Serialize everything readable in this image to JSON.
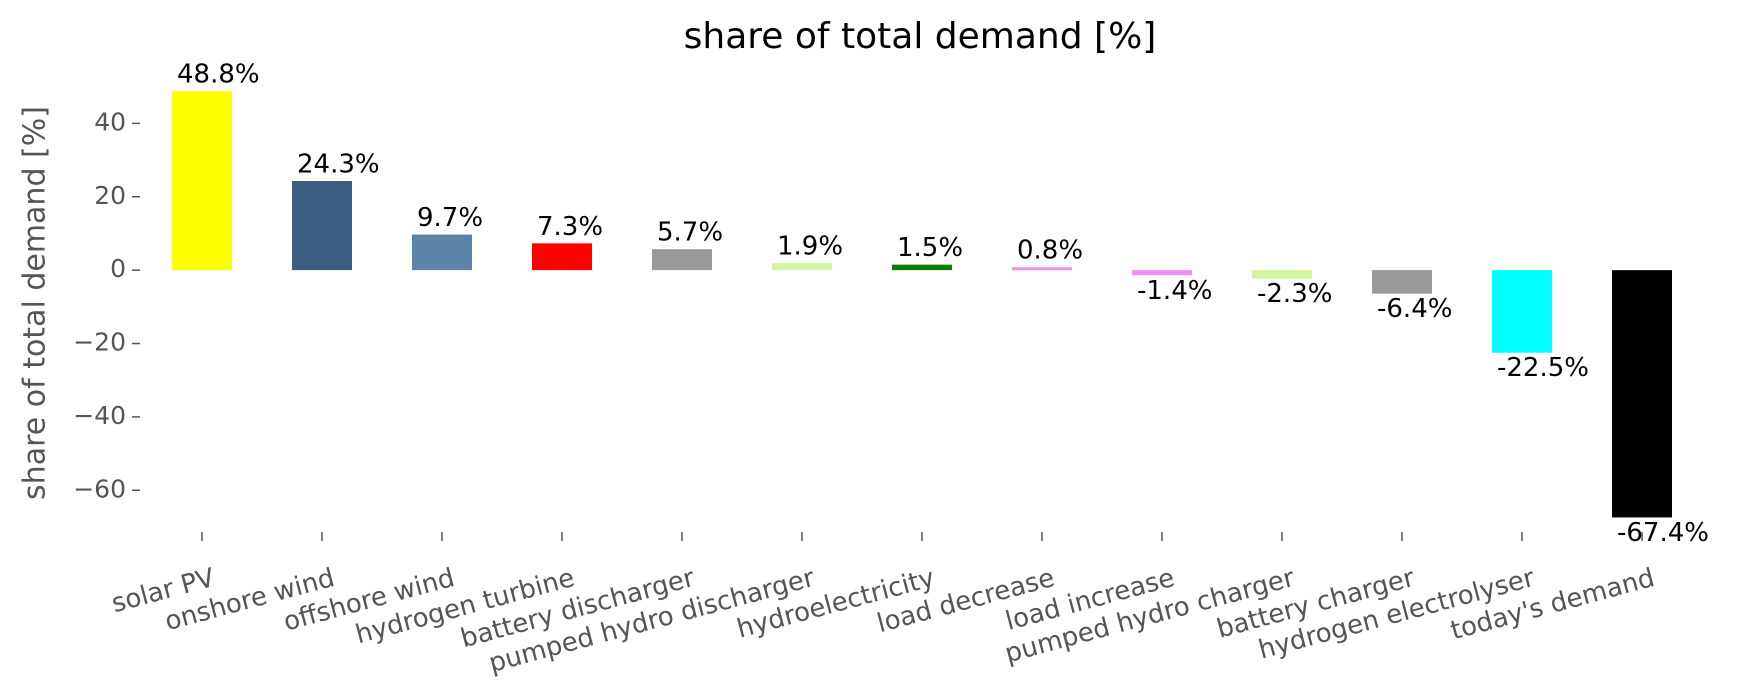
{
  "chart_data": {
    "type": "bar",
    "title": "share of total demand [%]",
    "y_label": "share of total demand [%]",
    "categories": [
      "solar PV",
      "onshore wind",
      "offshore wind",
      "hydrogen turbine",
      "battery discharger",
      "pumped hydro discharger",
      "hydroelectricity",
      "load decrease",
      "load increase",
      "pumped hydro charger",
      "battery charger",
      "hydrogen electrolyser",
      "today's demand"
    ],
    "values": [
      48.8,
      24.3,
      9.7,
      7.3,
      5.7,
      1.9,
      1.5,
      0.8,
      -1.4,
      -2.3,
      -6.4,
      -22.5,
      -67.4
    ],
    "value_labels": [
      "48.8%",
      "24.3%",
      "9.7%",
      "7.3%",
      "5.7%",
      "1.9%",
      "1.5%",
      "0.8%",
      "-1.4%",
      "-2.3%",
      "-6.4%",
      "-22.5%",
      "-67.4%"
    ],
    "colors": [
      "#ffff00",
      "#3b5f82",
      "#5b84a8",
      "#ff0000",
      "#999999",
      "#d4f5a0",
      "#0a7d0a",
      "#ee90ee",
      "#ee90ee",
      "#d4f5a0",
      "#999999",
      "#00ffff",
      "#000000"
    ],
    "ylim": [
      -73,
      54
    ],
    "yticks": [
      {
        "value": -60,
        "label": "−60"
      },
      {
        "value": -40,
        "label": "−40"
      },
      {
        "value": -20,
        "label": "−20"
      },
      0,
      20,
      40
    ],
    "grid": false
  }
}
